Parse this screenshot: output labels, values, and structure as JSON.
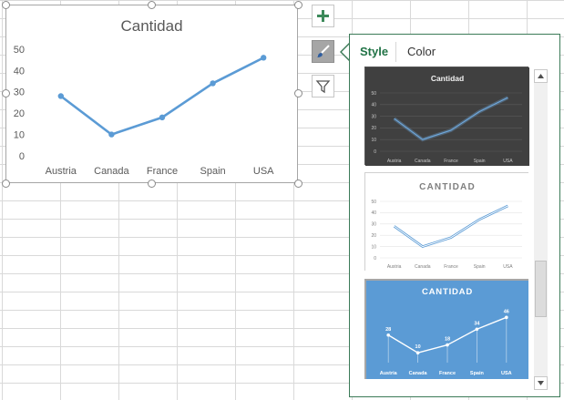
{
  "chart_data": {
    "type": "line",
    "title": "Cantidad",
    "categories": [
      "Austria",
      "Canada",
      "France",
      "Spain",
      "USA"
    ],
    "values": [
      28,
      10,
      18,
      34,
      46
    ],
    "ylim": [
      0,
      50
    ],
    "yticks": [
      0,
      10,
      20,
      30,
      40,
      50
    ],
    "grid": false,
    "legend": "none",
    "line_color": "#5b9bd5"
  },
  "side_buttons": {
    "add": "plus-icon",
    "styles": "paintbrush-icon",
    "filter": "funnel-icon"
  },
  "pane": {
    "tabs": [
      {
        "label": "Style",
        "active": true
      },
      {
        "label": "Color",
        "active": false
      }
    ],
    "thumbnails": [
      {
        "theme": "dark",
        "title": "Cantidad",
        "background": "#404040",
        "line_color": "#6fa8dc",
        "show_data_labels": false
      },
      {
        "theme": "light",
        "title": "CANTIDAD",
        "background": "#ffffff",
        "line_color": "#5b9bd5",
        "show_data_labels": false
      },
      {
        "theme": "blue",
        "title": "CANTIDAD",
        "background": "#5b9bd5",
        "line_color": "#ffffff",
        "show_data_labels": true
      }
    ]
  },
  "colors": {
    "pane_border": "#3b7a57",
    "active_tab": "#217346",
    "selected_thumb_border": "#a6a6a6"
  }
}
